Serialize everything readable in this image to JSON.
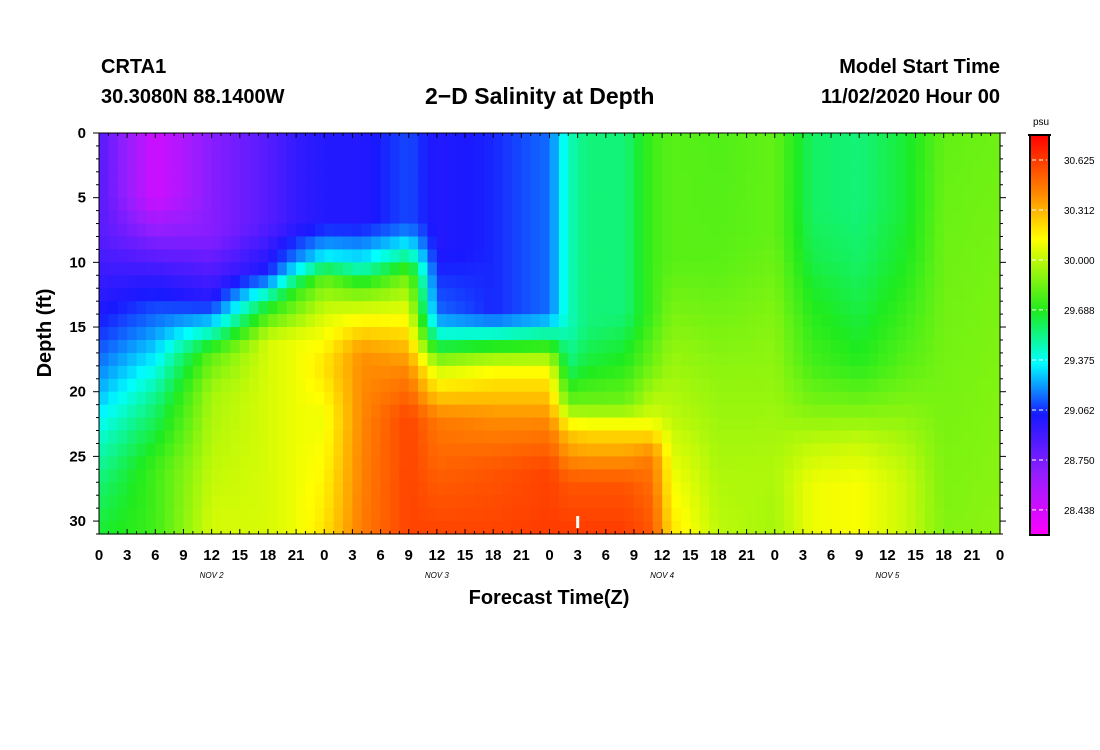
{
  "header": {
    "station_id": "CRTA1",
    "coords": "30.3080N 88.1400W",
    "title": "2−D Salinity at Depth",
    "start_label": "Model Start Time",
    "start_value": "11/02/2020 Hour 00"
  },
  "chart_data": {
    "type": "heatmap",
    "title": "2−D Salinity at Depth",
    "xlabel": "Forecast Time(Z)",
    "ylabel": "Depth (ft)",
    "x_range_hours": [
      0,
      96
    ],
    "y_range_ft": [
      0,
      31
    ],
    "x_tick_labels": [
      "0",
      "3",
      "6",
      "9",
      "12",
      "15",
      "18",
      "21",
      "0",
      "3",
      "6",
      "9",
      "12",
      "15",
      "18",
      "21",
      "0",
      "3",
      "6",
      "9",
      "12",
      "15",
      "18",
      "21",
      "0",
      "3",
      "6",
      "9",
      "12",
      "15",
      "18",
      "21",
      "0"
    ],
    "y_tick_values": [
      0,
      5,
      10,
      15,
      20,
      25,
      30
    ],
    "y_tick_labels": [
      "0",
      "5",
      "10",
      "15",
      "20",
      "25",
      "30"
    ],
    "day_labels": [
      {
        "label": "NOV  2",
        "hour": 12
      },
      {
        "label": "NOV  3",
        "hour": 36
      },
      {
        "label": "NOV  4",
        "hour": 60
      },
      {
        "label": "NOV  5",
        "hour": 84
      }
    ],
    "colorbar": {
      "unit": "psu",
      "min": 28.281,
      "max": 30.781,
      "labels": [
        "30.625",
        "30.312",
        "30.000",
        "29.688",
        "29.375",
        "29.062",
        "28.750",
        "28.438"
      ]
    },
    "current_time_marker_hour": 51,
    "salinity_profiles_psu": [
      {
        "hour": 0,
        "depths": [
          0,
          8,
          15,
          20,
          23,
          27,
          31
        ],
        "values": [
          28.85,
          28.85,
          29.05,
          29.25,
          29.4,
          29.55,
          29.65
        ]
      },
      {
        "hour": 6,
        "depths": [
          0,
          5,
          11,
          16,
          21,
          26,
          31
        ],
        "values": [
          28.45,
          28.45,
          28.95,
          29.25,
          29.55,
          29.75,
          29.75
        ]
      },
      {
        "hour": 12,
        "depths": [
          0,
          8,
          13,
          15,
          17,
          20,
          31
        ],
        "values": [
          28.7,
          28.7,
          29.0,
          29.35,
          29.8,
          29.95,
          30.05
        ]
      },
      {
        "hour": 18,
        "depths": [
          0,
          7,
          11,
          13,
          16,
          31
        ],
        "values": [
          28.85,
          28.85,
          29.05,
          29.6,
          30.05,
          30.05
        ]
      },
      {
        "hour": 21,
        "depths": [
          0,
          7,
          10,
          12,
          16,
          31
        ],
        "values": [
          28.95,
          28.95,
          29.2,
          29.7,
          30.1,
          30.1
        ]
      },
      {
        "hour": 24,
        "depths": [
          0,
          7,
          10,
          11,
          14,
          18,
          22,
          31
        ],
        "values": [
          29.0,
          29.0,
          29.4,
          29.8,
          30.05,
          30.2,
          30.1,
          30.2
        ]
      },
      {
        "hour": 28,
        "depths": [
          0,
          7,
          10,
          12,
          14,
          17,
          31
        ],
        "values": [
          29.0,
          29.0,
          29.35,
          29.8,
          30.1,
          30.4,
          30.45
        ]
      },
      {
        "hour": 33,
        "depths": [
          0,
          7,
          9,
          11,
          14,
          18,
          22,
          31
        ],
        "values": [
          29.1,
          29.1,
          29.4,
          29.85,
          30.1,
          30.4,
          30.6,
          30.6
        ]
      },
      {
        "hour": 36,
        "depths": [
          0,
          9,
          14,
          16,
          18,
          22,
          31
        ],
        "values": [
          29.0,
          29.0,
          29.15,
          29.5,
          30.0,
          30.45,
          30.6
        ]
      },
      {
        "hour": 42,
        "depths": [
          0,
          14,
          16,
          18,
          22,
          26,
          31
        ],
        "values": [
          29.05,
          29.05,
          29.55,
          30.1,
          30.4,
          30.55,
          30.6
        ]
      },
      {
        "hour": 48,
        "depths": [
          0,
          14,
          16,
          18,
          22,
          26,
          31
        ],
        "values": [
          29.15,
          29.15,
          29.6,
          30.1,
          30.4,
          30.6,
          30.62
        ]
      },
      {
        "hour": 50,
        "depths": [
          0,
          15,
          18,
          21,
          23,
          27,
          31
        ],
        "values": [
          29.45,
          29.45,
          29.55,
          29.85,
          30.25,
          30.55,
          30.62
        ]
      },
      {
        "hour": 52,
        "depths": [
          0,
          15,
          18,
          21,
          23,
          27,
          31
        ],
        "values": [
          29.55,
          29.55,
          29.65,
          29.85,
          30.2,
          30.55,
          30.62
        ]
      },
      {
        "hour": 56,
        "depths": [
          0,
          14,
          18,
          21,
          23,
          27,
          31
        ],
        "values": [
          29.55,
          29.55,
          29.7,
          29.85,
          30.2,
          30.55,
          30.62
        ]
      },
      {
        "hour": 59,
        "depths": [
          0,
          14,
          18,
          22,
          25,
          31
        ],
        "values": [
          29.75,
          29.75,
          29.85,
          30.05,
          30.45,
          30.55
        ]
      },
      {
        "hour": 61,
        "depths": [
          0,
          10,
          16,
          22,
          26,
          31
        ],
        "values": [
          29.8,
          29.8,
          29.9,
          30.0,
          30.1,
          30.2
        ]
      },
      {
        "hour": 66,
        "depths": [
          0,
          10,
          18,
          24,
          31
        ],
        "values": [
          29.78,
          29.8,
          29.9,
          29.95,
          30.0
        ]
      },
      {
        "hour": 72,
        "depths": [
          0,
          8,
          14,
          20,
          26,
          31
        ],
        "values": [
          29.82,
          29.82,
          29.88,
          29.92,
          29.97,
          29.95
        ]
      },
      {
        "hour": 76,
        "depths": [
          0,
          6,
          10,
          14,
          18,
          21,
          24,
          27,
          31
        ],
        "values": [
          29.58,
          29.58,
          29.62,
          29.7,
          29.76,
          29.86,
          30.0,
          30.1,
          30.1
        ]
      },
      {
        "hour": 81,
        "depths": [
          0,
          6,
          10,
          14,
          18,
          21,
          24,
          27,
          31
        ],
        "values": [
          29.55,
          29.55,
          29.58,
          29.63,
          29.7,
          29.85,
          30.02,
          30.12,
          30.12
        ]
      },
      {
        "hour": 86,
        "depths": [
          0,
          6,
          10,
          14,
          18,
          21,
          24,
          27,
          31
        ],
        "values": [
          29.65,
          29.65,
          29.68,
          29.74,
          29.8,
          29.88,
          29.96,
          30.02,
          30.02
        ]
      },
      {
        "hour": 90,
        "depths": [
          0,
          31
        ],
        "values": [
          29.82,
          29.88
        ]
      },
      {
        "hour": 96,
        "depths": [
          0,
          31
        ],
        "values": [
          29.84,
          29.9
        ]
      }
    ]
  }
}
